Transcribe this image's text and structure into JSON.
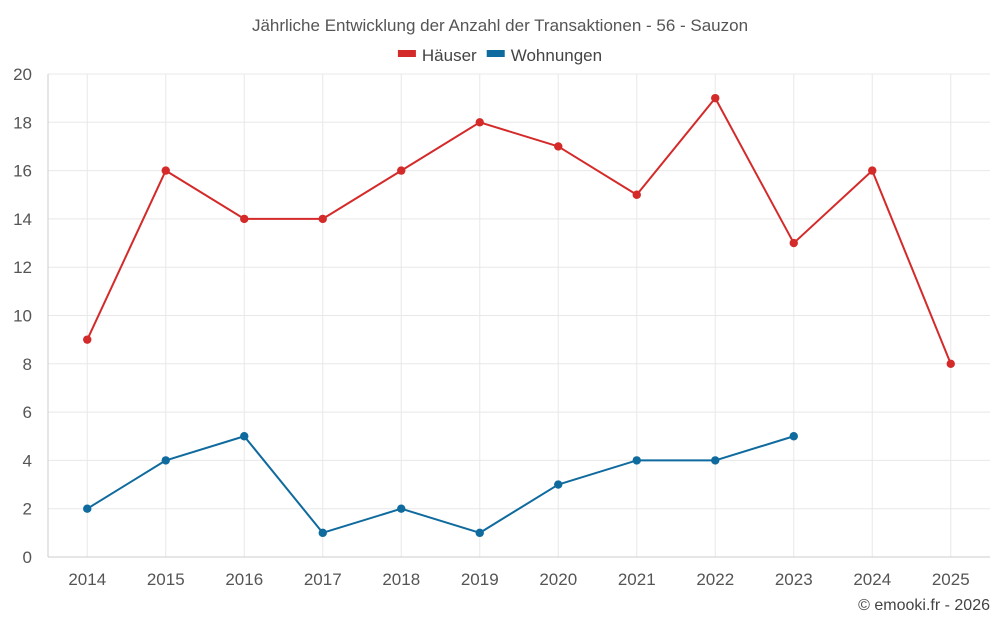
{
  "chart_data": {
    "type": "line",
    "title": "Jährliche Entwicklung der Anzahl der Transaktionen - 56 - Sauzon",
    "categories": [
      "2014",
      "2015",
      "2016",
      "2017",
      "2018",
      "2019",
      "2020",
      "2021",
      "2022",
      "2023",
      "2024",
      "2025"
    ],
    "series": [
      {
        "name": "Häuser",
        "color": "#d42a2a",
        "values": [
          9,
          16,
          14,
          14,
          16,
          18,
          17,
          15,
          19,
          13,
          16,
          8
        ]
      },
      {
        "name": "Wohnungen",
        "color": "#0f6a9e",
        "values": [
          2,
          4,
          5,
          1,
          2,
          1,
          3,
          4,
          4,
          5,
          null,
          null
        ]
      }
    ],
    "ylim": [
      0,
      20
    ],
    "yticks": [
      0,
      2,
      4,
      6,
      8,
      10,
      12,
      14,
      16,
      18,
      20
    ],
    "xlabel": "",
    "ylabel": "",
    "grid": true,
    "legend_position": "top-center"
  },
  "credit": "© emooki.fr - 2026"
}
